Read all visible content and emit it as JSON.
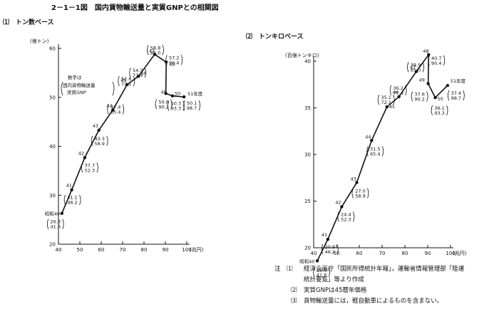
{
  "figure_title": "2－1－1図　国内貨物輸送量と実質GNPとの相関図",
  "notes": [
    {
      "mark": "注　⑴",
      "text": "経済企画庁「国民所得統計年報」，運輸省情報管理部「陸運"
    },
    {
      "mark": "",
      "text": "統計要覧」等より作成"
    },
    {
      "mark": "⑵",
      "text": "実質GNPは45暦年価格"
    },
    {
      "mark": "⑶",
      "text": "貨物輸送量には，軽自動車によるものを含まない。"
    }
  ],
  "chart_data": [
    {
      "type": "line",
      "subtitle": "⑴　トン数ベース",
      "ylabel": "(億トン)",
      "xlabel": "(兆円)",
      "xlim": [
        40,
        100
      ],
      "ylim": [
        20,
        60
      ],
      "xticks": [
        40,
        50,
        60,
        70,
        80,
        90,
        100
      ],
      "yticks": [
        20,
        30,
        40,
        50,
        60
      ],
      "grid": false,
      "annotation": [
        "数字は",
        "国内貨物輸送量",
        "実質GNP"
      ],
      "points": [
        {
          "label": "昭和40",
          "x": 41.6,
          "y": 26.3,
          "text": [
            "26.3",
            "41.6"
          ]
        },
        {
          "label": "41",
          "x": 46.2,
          "y": 31.1,
          "text": [
            "31.1",
            "46.2"
          ]
        },
        {
          "label": "42",
          "x": 52.3,
          "y": 37.7,
          "text": [
            "37.7",
            "52.3"
          ]
        },
        {
          "label": "43",
          "x": 58.9,
          "y": 43.3,
          "text": [
            "43.3",
            "58.9"
          ]
        },
        {
          "label": "44",
          "x": 65.4,
          "y": 47.4,
          "text": [
            "47.4",
            "65.4"
          ]
        },
        {
          "label": "45",
          "x": 72.1,
          "y": 52.6,
          "text": [
            "52.6",
            "72.1"
          ]
        },
        {
          "label": "46",
          "x": 77.4,
          "y": 54.3,
          "text": [
            "54.3",
            "77.4"
          ]
        },
        {
          "label": "47",
          "x": 85.0,
          "y": 58.8,
          "text": [
            "58.8",
            "85.0"
          ]
        },
        {
          "label": "48",
          "x": 90.4,
          "y": 57.2,
          "text": [
            "57.2",
            "90.4"
          ]
        },
        {
          "label": "49",
          "x": 90.2,
          "y": 50.8,
          "text": [
            "50.8",
            "90.2"
          ]
        },
        {
          "label": "50",
          "x": 93.3,
          "y": 50.3,
          "text": [
            "50.3",
            "93.3"
          ]
        },
        {
          "label": "51年度",
          "x": 98.7,
          "y": 50.1,
          "text": [
            "50.1",
            "98.7"
          ]
        }
      ]
    },
    {
      "type": "line",
      "subtitle": "⑵　トンキロベース",
      "ylabel": "(百億トンキロ)",
      "xlabel": "(兆円)",
      "xlim": [
        40,
        100
      ],
      "ylim": [
        20,
        40
      ],
      "xticks": [
        40,
        50,
        60,
        70,
        80,
        90,
        100
      ],
      "yticks": [
        20,
        25,
        30,
        35,
        40
      ],
      "grid": false,
      "points": [
        {
          "label": "昭和40",
          "x": 41.6,
          "y": 18.6,
          "text": [
            "18.6",
            "41.6"
          ]
        },
        {
          "label": "41",
          "x": 46.2,
          "y": 20.9,
          "text": [
            "20.9",
            "46.2"
          ]
        },
        {
          "label": "42",
          "x": 52.3,
          "y": 24.4,
          "text": [
            "24.4",
            "52.3"
          ]
        },
        {
          "label": "43",
          "x": 58.9,
          "y": 27.0,
          "text": [
            "27.0",
            "58.9"
          ]
        },
        {
          "label": "44",
          "x": 65.4,
          "y": 31.5,
          "text": [
            "31.5",
            "65.4"
          ]
        },
        {
          "label": "45",
          "x": 72.1,
          "y": 35.1,
          "text": [
            "35.1",
            "72.1"
          ]
        },
        {
          "label": "46",
          "x": 77.4,
          "y": 36.2,
          "text": [
            "36.2",
            "77.4"
          ]
        },
        {
          "label": "47",
          "x": 85.0,
          "y": 38.9,
          "text": [
            "38.9",
            "85.0"
          ]
        },
        {
          "label": "48",
          "x": 90.4,
          "y": 40.7,
          "text": [
            "40.7",
            "90.4"
          ]
        },
        {
          "label": "49",
          "x": 90.2,
          "y": 37.6,
          "text": [
            "37.6",
            "90.2"
          ]
        },
        {
          "label": "50",
          "x": 93.3,
          "y": 36.1,
          "text": [
            "36.1",
            "93.3"
          ]
        },
        {
          "label": "51年度",
          "x": 98.7,
          "y": 37.4,
          "text": [
            "37.4",
            "98.7"
          ]
        }
      ]
    }
  ]
}
